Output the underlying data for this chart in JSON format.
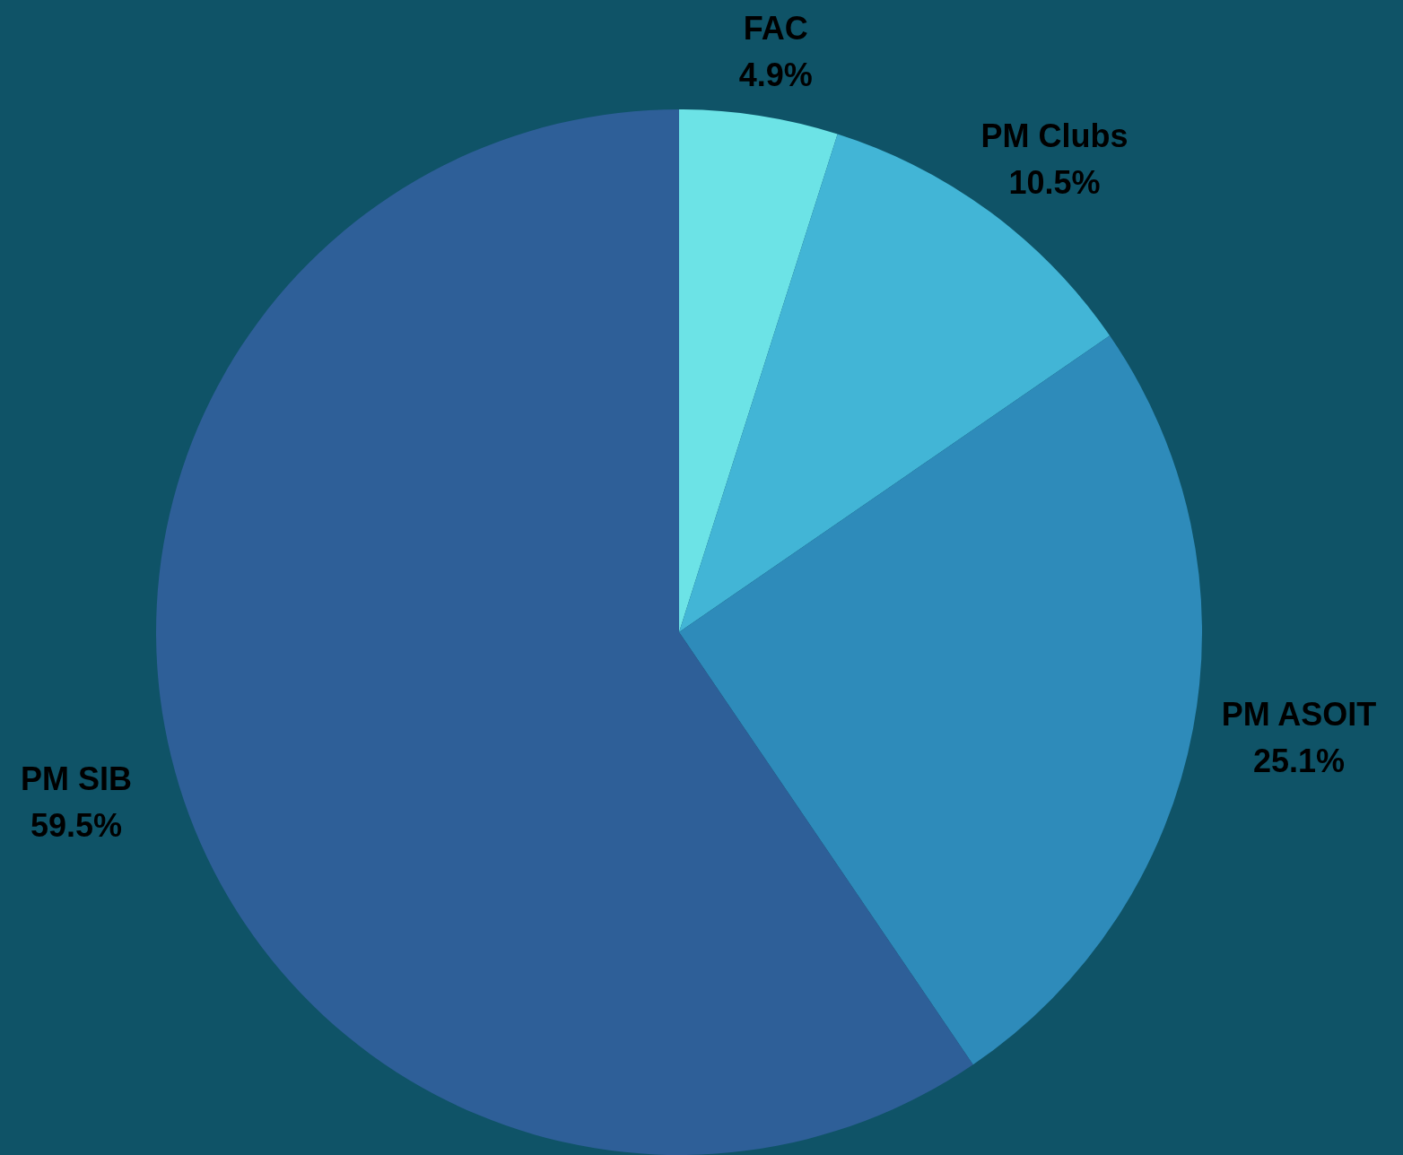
{
  "chart_data": {
    "type": "pie",
    "categories": [
      "FAC",
      "PM Clubs",
      "PM ASOIT",
      "PM SIB"
    ],
    "values": [
      4.9,
      10.5,
      25.1,
      59.5
    ],
    "colors": [
      "#6ce3e6",
      "#42b5d6",
      "#2e8bba",
      "#2e5f98"
    ],
    "value_labels": [
      "4.9%",
      "10.5%",
      "25.1%",
      "59.5%"
    ],
    "legend": false
  }
}
